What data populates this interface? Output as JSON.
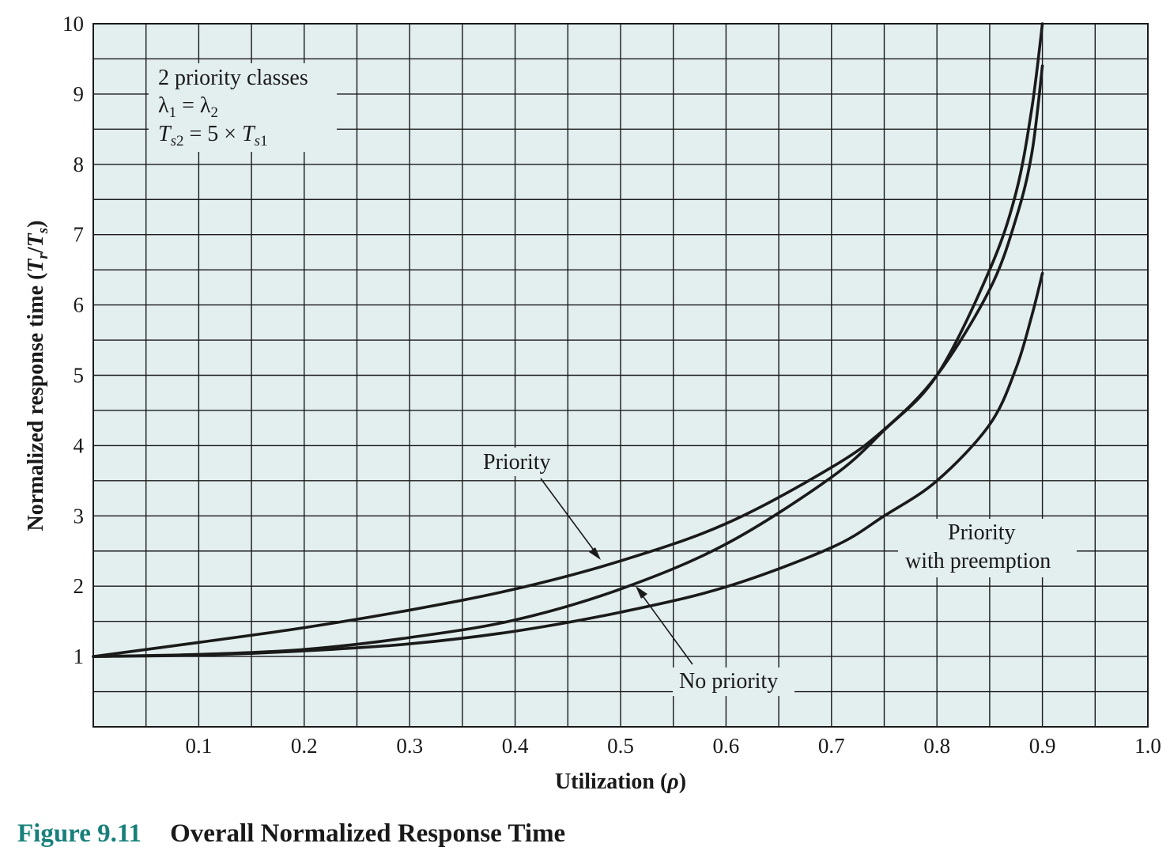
{
  "chart_data": {
    "type": "line",
    "xlabel": "Utilization (ρ)",
    "ylabel": "Normalized response time (Tr/Ts)",
    "xlim": [
      0,
      1.0
    ],
    "ylim": [
      0,
      10
    ],
    "x_ticks": [
      "0.1",
      "0.2",
      "0.3",
      "0.4",
      "0.5",
      "0.6",
      "0.7",
      "0.8",
      "0.9",
      "1.0"
    ],
    "y_ticks": [
      "1",
      "2",
      "3",
      "4",
      "5",
      "6",
      "7",
      "8",
      "9",
      "10"
    ],
    "grid": true,
    "background_color": "#e3eeee",
    "line_color": "#1a1a1a",
    "legend_box": [
      "2 priority classes",
      "λ1 = λ2",
      "Ts2 = 5 × Ts1"
    ],
    "series": [
      {
        "name": "Priority",
        "x": [
          0.0,
          0.1,
          0.2,
          0.3,
          0.4,
          0.5,
          0.6,
          0.7,
          0.75,
          0.8,
          0.85,
          0.875,
          0.89,
          0.9
        ],
        "y": [
          1.0,
          1.2,
          1.41,
          1.66,
          1.96,
          2.36,
          2.89,
          3.69,
          4.23,
          5.0,
          6.22,
          7.23,
          8.16,
          9.4
        ]
      },
      {
        "name": "No priority",
        "x": [
          0.0,
          0.1,
          0.2,
          0.3,
          0.4,
          0.5,
          0.6,
          0.7,
          0.75,
          0.8,
          0.85,
          0.875,
          0.89,
          0.9
        ],
        "y": [
          1.0,
          1.03,
          1.1,
          1.27,
          1.52,
          1.96,
          2.6,
          3.55,
          4.22,
          5.0,
          6.5,
          7.6,
          8.8,
          10.0
        ]
      },
      {
        "name": "Priority with preemption",
        "x": [
          0.0,
          0.1,
          0.2,
          0.3,
          0.4,
          0.5,
          0.6,
          0.7,
          0.75,
          0.8,
          0.85,
          0.875,
          0.89,
          0.9
        ],
        "y": [
          1.0,
          1.02,
          1.08,
          1.18,
          1.36,
          1.63,
          1.99,
          2.55,
          3.0,
          3.5,
          4.3,
          5.1,
          5.85,
          6.45
        ]
      }
    ],
    "annotations": [
      {
        "text": "Priority",
        "series": "Priority"
      },
      {
        "text": "No priority",
        "series": "No priority"
      },
      {
        "text": "Priority",
        "text2": "with preemption",
        "series": "Priority with preemption"
      }
    ]
  },
  "caption": {
    "figure_number": "Figure 9.11",
    "title": "Overall Normalized Response Time",
    "color": "#17807a"
  }
}
